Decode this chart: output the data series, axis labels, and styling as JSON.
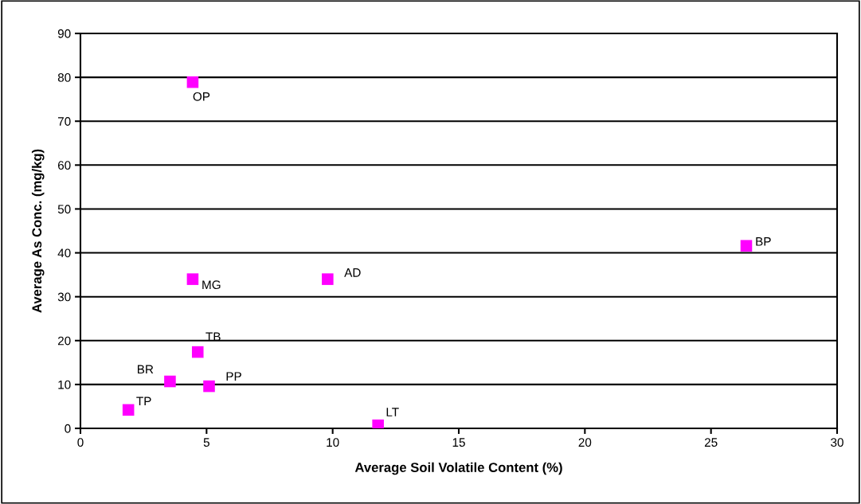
{
  "chart_data": {
    "type": "scatter",
    "xlabel": "Average Soil Volatile Content (%)",
    "ylabel": "Average As Conc. (mg/kg)",
    "xlim": [
      0,
      30
    ],
    "xticks": [
      0,
      5,
      10,
      15,
      20,
      25,
      30
    ],
    "ylim": [
      0,
      90
    ],
    "yticks": [
      0,
      10,
      20,
      30,
      40,
      50,
      60,
      70,
      80,
      90
    ],
    "grid": "y",
    "legend": false,
    "marker": "square",
    "series": [
      {
        "name": "OP",
        "color": "#ff00ff",
        "x": [
          4.45
        ],
        "values": [
          78.9
        ]
      },
      {
        "name": "BP",
        "color": "#ff00ff",
        "x": [
          26.4
        ],
        "values": [
          41.6
        ]
      },
      {
        "name": "MG",
        "color": "#ff00ff",
        "x": [
          4.45
        ],
        "values": [
          34.0
        ]
      },
      {
        "name": "AD",
        "color": "#ff00ff",
        "x": [
          9.8
        ],
        "values": [
          34.0
        ]
      },
      {
        "name": "TB",
        "color": "#ff00ff",
        "x": [
          4.65
        ],
        "values": [
          17.4
        ]
      },
      {
        "name": "BR",
        "color": "#ff00ff",
        "x": [
          3.55
        ],
        "values": [
          10.7
        ]
      },
      {
        "name": "PP",
        "color": "#ff00ff",
        "x": [
          5.1
        ],
        "values": [
          9.6
        ]
      },
      {
        "name": "TP",
        "color": "#ff00ff",
        "x": [
          1.9
        ],
        "values": [
          4.2
        ]
      },
      {
        "name": "LT",
        "color": "#ff00ff",
        "x": [
          11.8
        ],
        "values": [
          0.7
        ]
      }
    ]
  }
}
